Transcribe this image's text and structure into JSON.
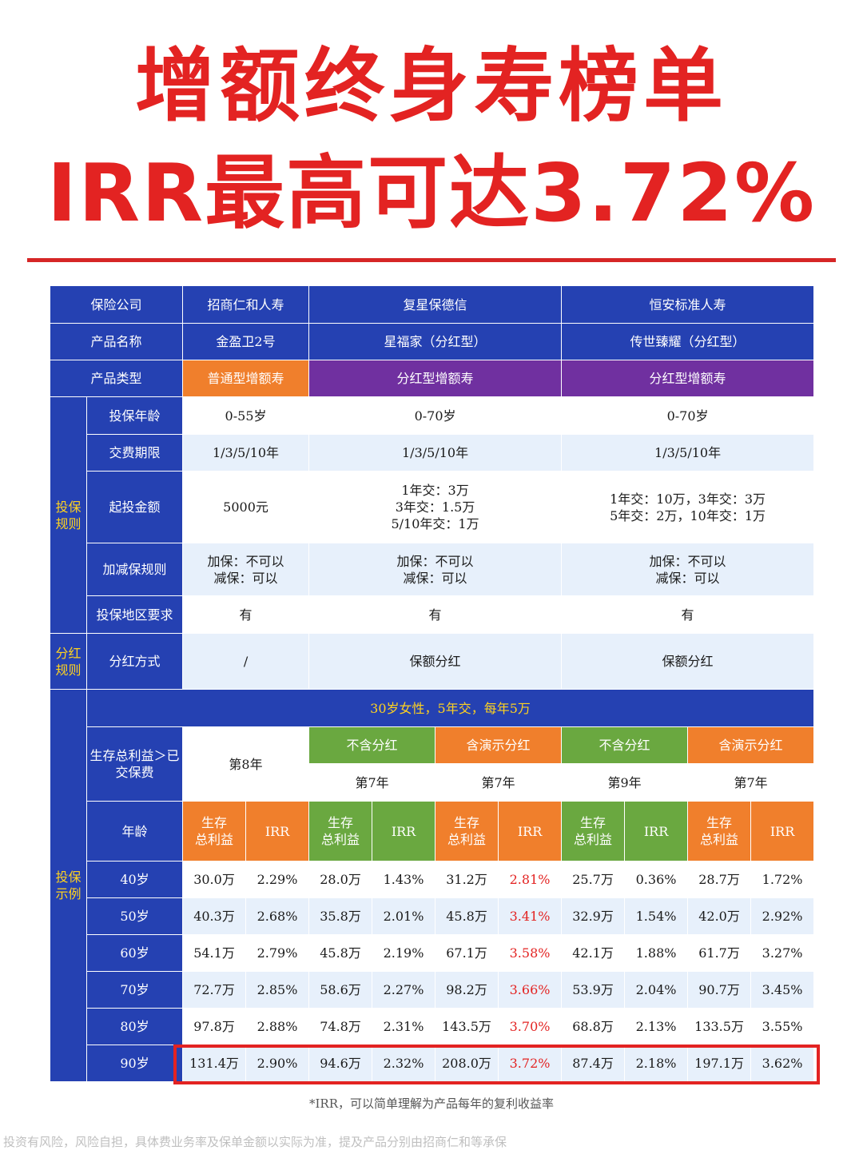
{
  "title": {
    "line1": "增额终身寿榜单",
    "line2": "IRR最高可达3.72%"
  },
  "companies": {
    "label": "保险公司",
    "values": [
      "招商仁和人寿",
      "复星保德信",
      "恒安标准人寿"
    ]
  },
  "product_names": {
    "label": "产品名称",
    "values": [
      "金盈卫2号",
      "星福家（分红型）",
      "传世臻耀（分红型）"
    ]
  },
  "product_types": {
    "label": "产品类型",
    "values": [
      "普通型增额寿",
      "分红型增额寿",
      "分红型增额寿"
    ],
    "colors": [
      "#f07f2c",
      "#7030a0",
      "#7030a0"
    ]
  },
  "rules_section": {
    "label": "投保规则",
    "rows": [
      {
        "label": "投保年龄",
        "values": [
          "0-55岁",
          "0-70岁",
          "0-70岁"
        ]
      },
      {
        "label": "交费期限",
        "values": [
          "1/3/5/10年",
          "1/3/5/10年",
          "1/3/5/10年"
        ]
      },
      {
        "label": "起投金额",
        "values": [
          [
            "5000元"
          ],
          [
            "1年交：3万",
            "3年交：1.5万",
            "5/10年交：1万"
          ],
          [
            "1年交：10万，3年交：3万",
            "5年交：2万，10年交：1万"
          ]
        ]
      },
      {
        "label": "加减保规则",
        "values": [
          [
            "加保：不可以",
            "减保：可以"
          ],
          [
            "加保：不可以",
            "减保：可以"
          ],
          [
            "加保：不可以",
            "减保：可以"
          ]
        ]
      },
      {
        "label": "投保地区要求",
        "values": [
          "有",
          "有",
          "有"
        ]
      }
    ]
  },
  "dividend_section": {
    "label": "分红规则",
    "row": {
      "label": "分红方式",
      "values": [
        "/",
        "保额分红",
        "保额分红"
      ]
    }
  },
  "example_section": {
    "label": "投保示例",
    "scenario": "30岁女性，5年交，每年5万",
    "breakeven_label": "生存总利益＞已交保费",
    "breakeven_col1": "第8年",
    "sub_headers": [
      "不含分红",
      "含演示分红",
      "不含分红",
      "含演示分红"
    ],
    "breakeven_years": [
      "第7年",
      "第7年",
      "第9年",
      "第7年"
    ],
    "age_label": "年龄",
    "col_benefit": "生存总利益",
    "col_irr": "IRR",
    "rows": [
      {
        "age": "40岁",
        "cells": [
          "30.0万",
          "2.29%",
          "28.0万",
          "1.43%",
          "31.2万",
          "2.81%",
          "25.7万",
          "0.36%",
          "28.7万",
          "1.72%"
        ]
      },
      {
        "age": "50岁",
        "cells": [
          "40.3万",
          "2.68%",
          "35.8万",
          "2.01%",
          "45.8万",
          "3.41%",
          "32.9万",
          "1.54%",
          "42.0万",
          "2.92%"
        ]
      },
      {
        "age": "60岁",
        "cells": [
          "54.1万",
          "2.79%",
          "45.8万",
          "2.19%",
          "67.1万",
          "3.58%",
          "42.1万",
          "1.88%",
          "61.7万",
          "3.27%"
        ]
      },
      {
        "age": "70岁",
        "cells": [
          "72.7万",
          "2.85%",
          "58.6万",
          "2.27%",
          "98.2万",
          "3.66%",
          "53.9万",
          "2.04%",
          "90.7万",
          "3.45%"
        ]
      },
      {
        "age": "80岁",
        "cells": [
          "97.8万",
          "2.88%",
          "74.8万",
          "2.31%",
          "143.5万",
          "3.70%",
          "68.8万",
          "2.13%",
          "133.5万",
          "3.55%"
        ]
      },
      {
        "age": "90岁",
        "cells": [
          "131.4万",
          "2.90%",
          "94.6万",
          "2.32%",
          "208.0万",
          "3.72%",
          "87.4万",
          "2.18%",
          "197.1万",
          "3.62%"
        ]
      }
    ],
    "highlight_color": "#e32322"
  },
  "footnote": "*IRR，可以简单理解为产品每年的复利收益率",
  "disclaimer": "投资有风险，风险自担，具体费业务率及保单金额以实际为准，提及产品分别由招商仁和等承保"
}
